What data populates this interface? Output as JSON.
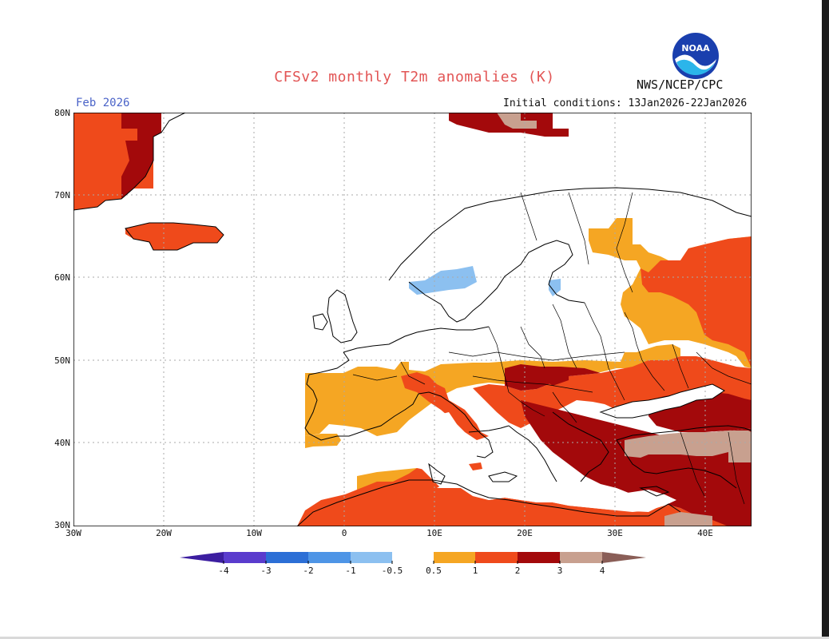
{
  "header": {
    "title": "CFSv2 monthly T2m anomalies (K)",
    "month": "Feb 2026",
    "agency": "NWS/NCEP/CPC",
    "initial_conditions": "Initial conditions: 13Jan2026-22Jan2026",
    "logo_text": "NOAA"
  },
  "map": {
    "region": "Europe",
    "lat_labels": [
      "80N",
      "70N",
      "60N",
      "50N",
      "40N",
      "30N"
    ],
    "lon_labels": [
      "30W",
      "20W",
      "10W",
      "0",
      "10E",
      "20E",
      "30E",
      "40E"
    ]
  },
  "legend": {
    "labels": [
      "-4",
      "-3",
      "-2",
      "-1",
      "-0.5",
      "0.5",
      "1",
      "2",
      "3",
      "4"
    ],
    "colors": {
      "lt_m4": "#3c1ea0",
      "m4_m3": "#5a3ccd",
      "m3_m2": "#2c6fd6",
      "m2_m1": "#4e95e6",
      "m1_m05": "#8cc0f0",
      "p05_p1": "#f5a623",
      "p1_p2": "#ef4a1b",
      "p2_p3": "#a3090b",
      "p3_p4": "#c8a08f",
      "gt_p4": "#8a5e57"
    }
  }
}
